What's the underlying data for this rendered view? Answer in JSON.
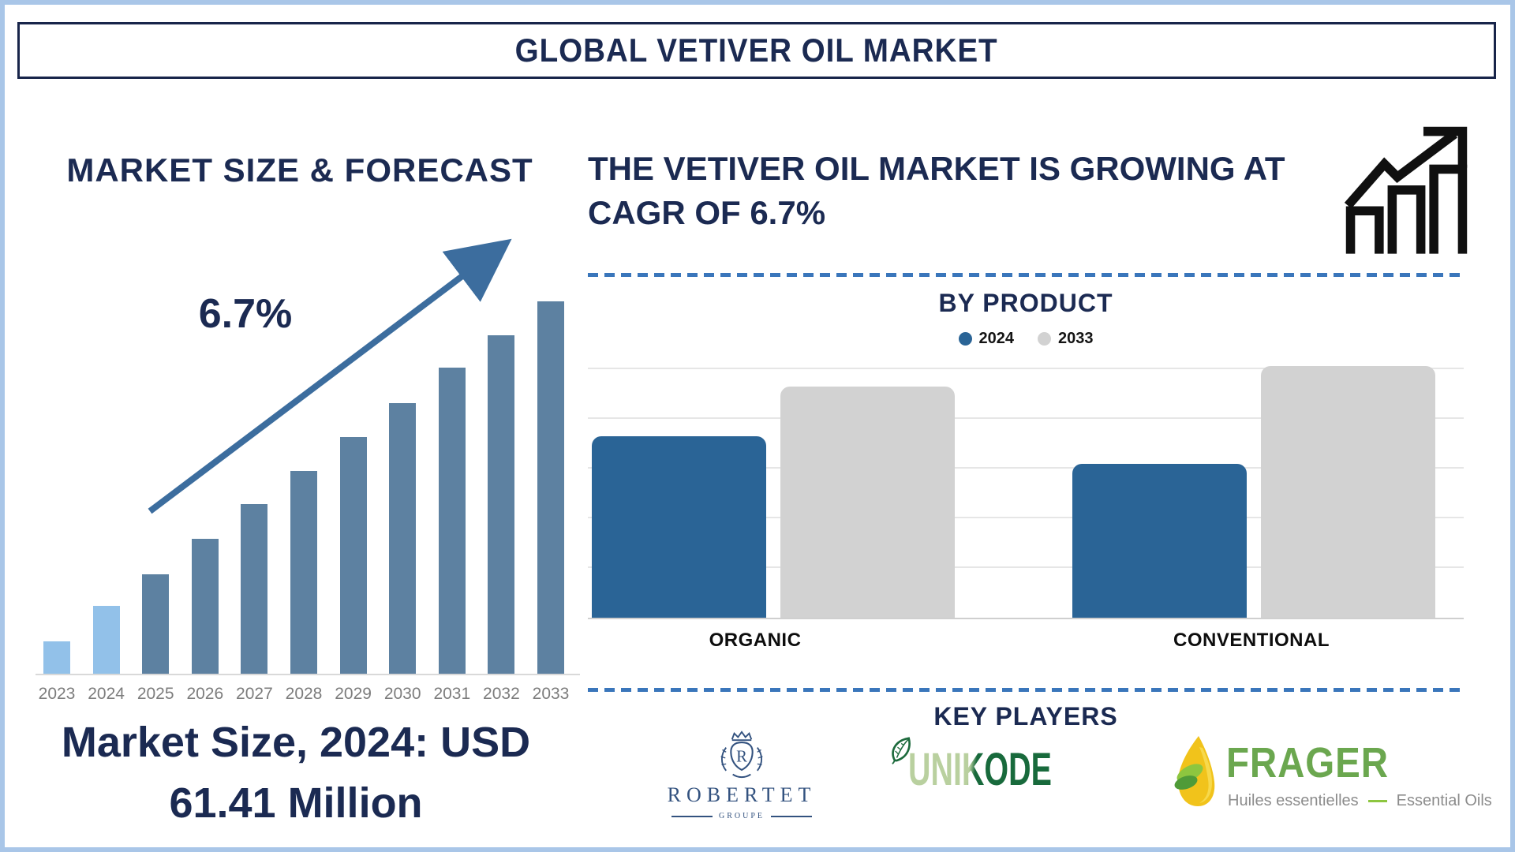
{
  "page": {
    "title": "GLOBAL VETIVER OIL MARKET"
  },
  "colors": {
    "navy_text": "#1b2a52",
    "outer_border": "#a9c6e8",
    "dashed_divider": "#3a76bb",
    "forecast_bar_highlight": "#92c1e9",
    "forecast_bar_normal": "#5d81a1",
    "trend_arrow": "#3c6d9e",
    "product_bar_2024": "#2a6496",
    "product_bar_2033": "#d2d2d2"
  },
  "left_panel": {
    "heading": "MARKET SIZE & FORECAST",
    "cagr": "6.7%",
    "caption_line1": "Market Size, 2024: USD",
    "caption_line2": "61.41 Million"
  },
  "right_panel": {
    "heading_line1": "THE VETIVER OIL MARKET IS GROWING AT",
    "heading_line2": "CAGR OF 6.7%",
    "by_product_title": "BY PRODUCT",
    "key_players_title": "KEY PLAYERS"
  },
  "key_players": {
    "robertet": {
      "name": "ROBERTET",
      "sub": "GROUPE"
    },
    "unikode": {
      "name": "UNIKODE"
    },
    "frager": {
      "name": "FRAGER",
      "subtitle_fr": "Huiles essentielles",
      "subtitle_en": "Essential Oils"
    }
  },
  "chart_data": [
    {
      "type": "bar",
      "title": "MARKET SIZE & FORECAST",
      "x": [
        "2023",
        "2024",
        "2025",
        "2026",
        "2027",
        "2028",
        "2029",
        "2030",
        "2031",
        "2032",
        "2033"
      ],
      "relative_heights_pct": [
        8.7,
        18.2,
        26.7,
        36.2,
        45.6,
        54.4,
        63.6,
        72.7,
        82.2,
        90.9,
        100
      ],
      "bar_colors": [
        "#92c1e9",
        "#92c1e9",
        "#5d81a1",
        "#5d81a1",
        "#5d81a1",
        "#5d81a1",
        "#5d81a1",
        "#5d81a1",
        "#5d81a1",
        "#5d81a1",
        "#5d81a1"
      ],
      "ylabel": "",
      "y_axis_shown": false,
      "annotations": {
        "cagr": "6.7%",
        "market_size_2024": "USD 61.41 Million"
      }
    },
    {
      "type": "bar",
      "title": "BY PRODUCT",
      "categories": [
        "ORGANIC",
        "CONVENTIONAL"
      ],
      "series": [
        {
          "name": "2024",
          "color": "#2a6496",
          "relative_heights_pct": [
            72,
            61
          ]
        },
        {
          "name": "2033",
          "color": "#d2d2d2",
          "relative_heights_pct": [
            92,
            100
          ]
        }
      ],
      "grid": true,
      "y_axis_shown": false,
      "legend_position": "top"
    }
  ]
}
